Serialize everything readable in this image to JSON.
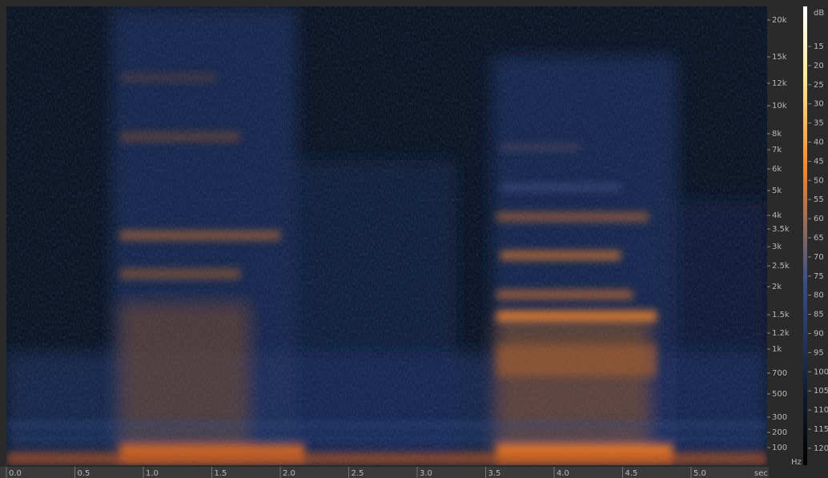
{
  "frequency_axis": {
    "labels": [
      "20k",
      "15k",
      "12k",
      "10k",
      "8k",
      "7k",
      "6k",
      "5k",
      "4k",
      "3.5k",
      "3k",
      "2.5k",
      "2k",
      "1.5k",
      "1.2k",
      "1k",
      "700",
      "500",
      "300",
      "200",
      "100"
    ],
    "unit": "Hz"
  },
  "level_scale": {
    "unit": "dB",
    "labels": [
      "15",
      "20",
      "25",
      "30",
      "35",
      "40",
      "45",
      "50",
      "55",
      "60",
      "65",
      "70",
      "75",
      "80",
      "85",
      "90",
      "95",
      "100",
      "105",
      "110",
      "115",
      "120"
    ]
  },
  "time_axis": {
    "labels": [
      "0.0",
      "0.5",
      "1.0",
      "1.5",
      "2.0",
      "2.5",
      "3.0",
      "3.5",
      "4.0",
      "4.5",
      "5.0"
    ],
    "unit": "sec"
  }
}
